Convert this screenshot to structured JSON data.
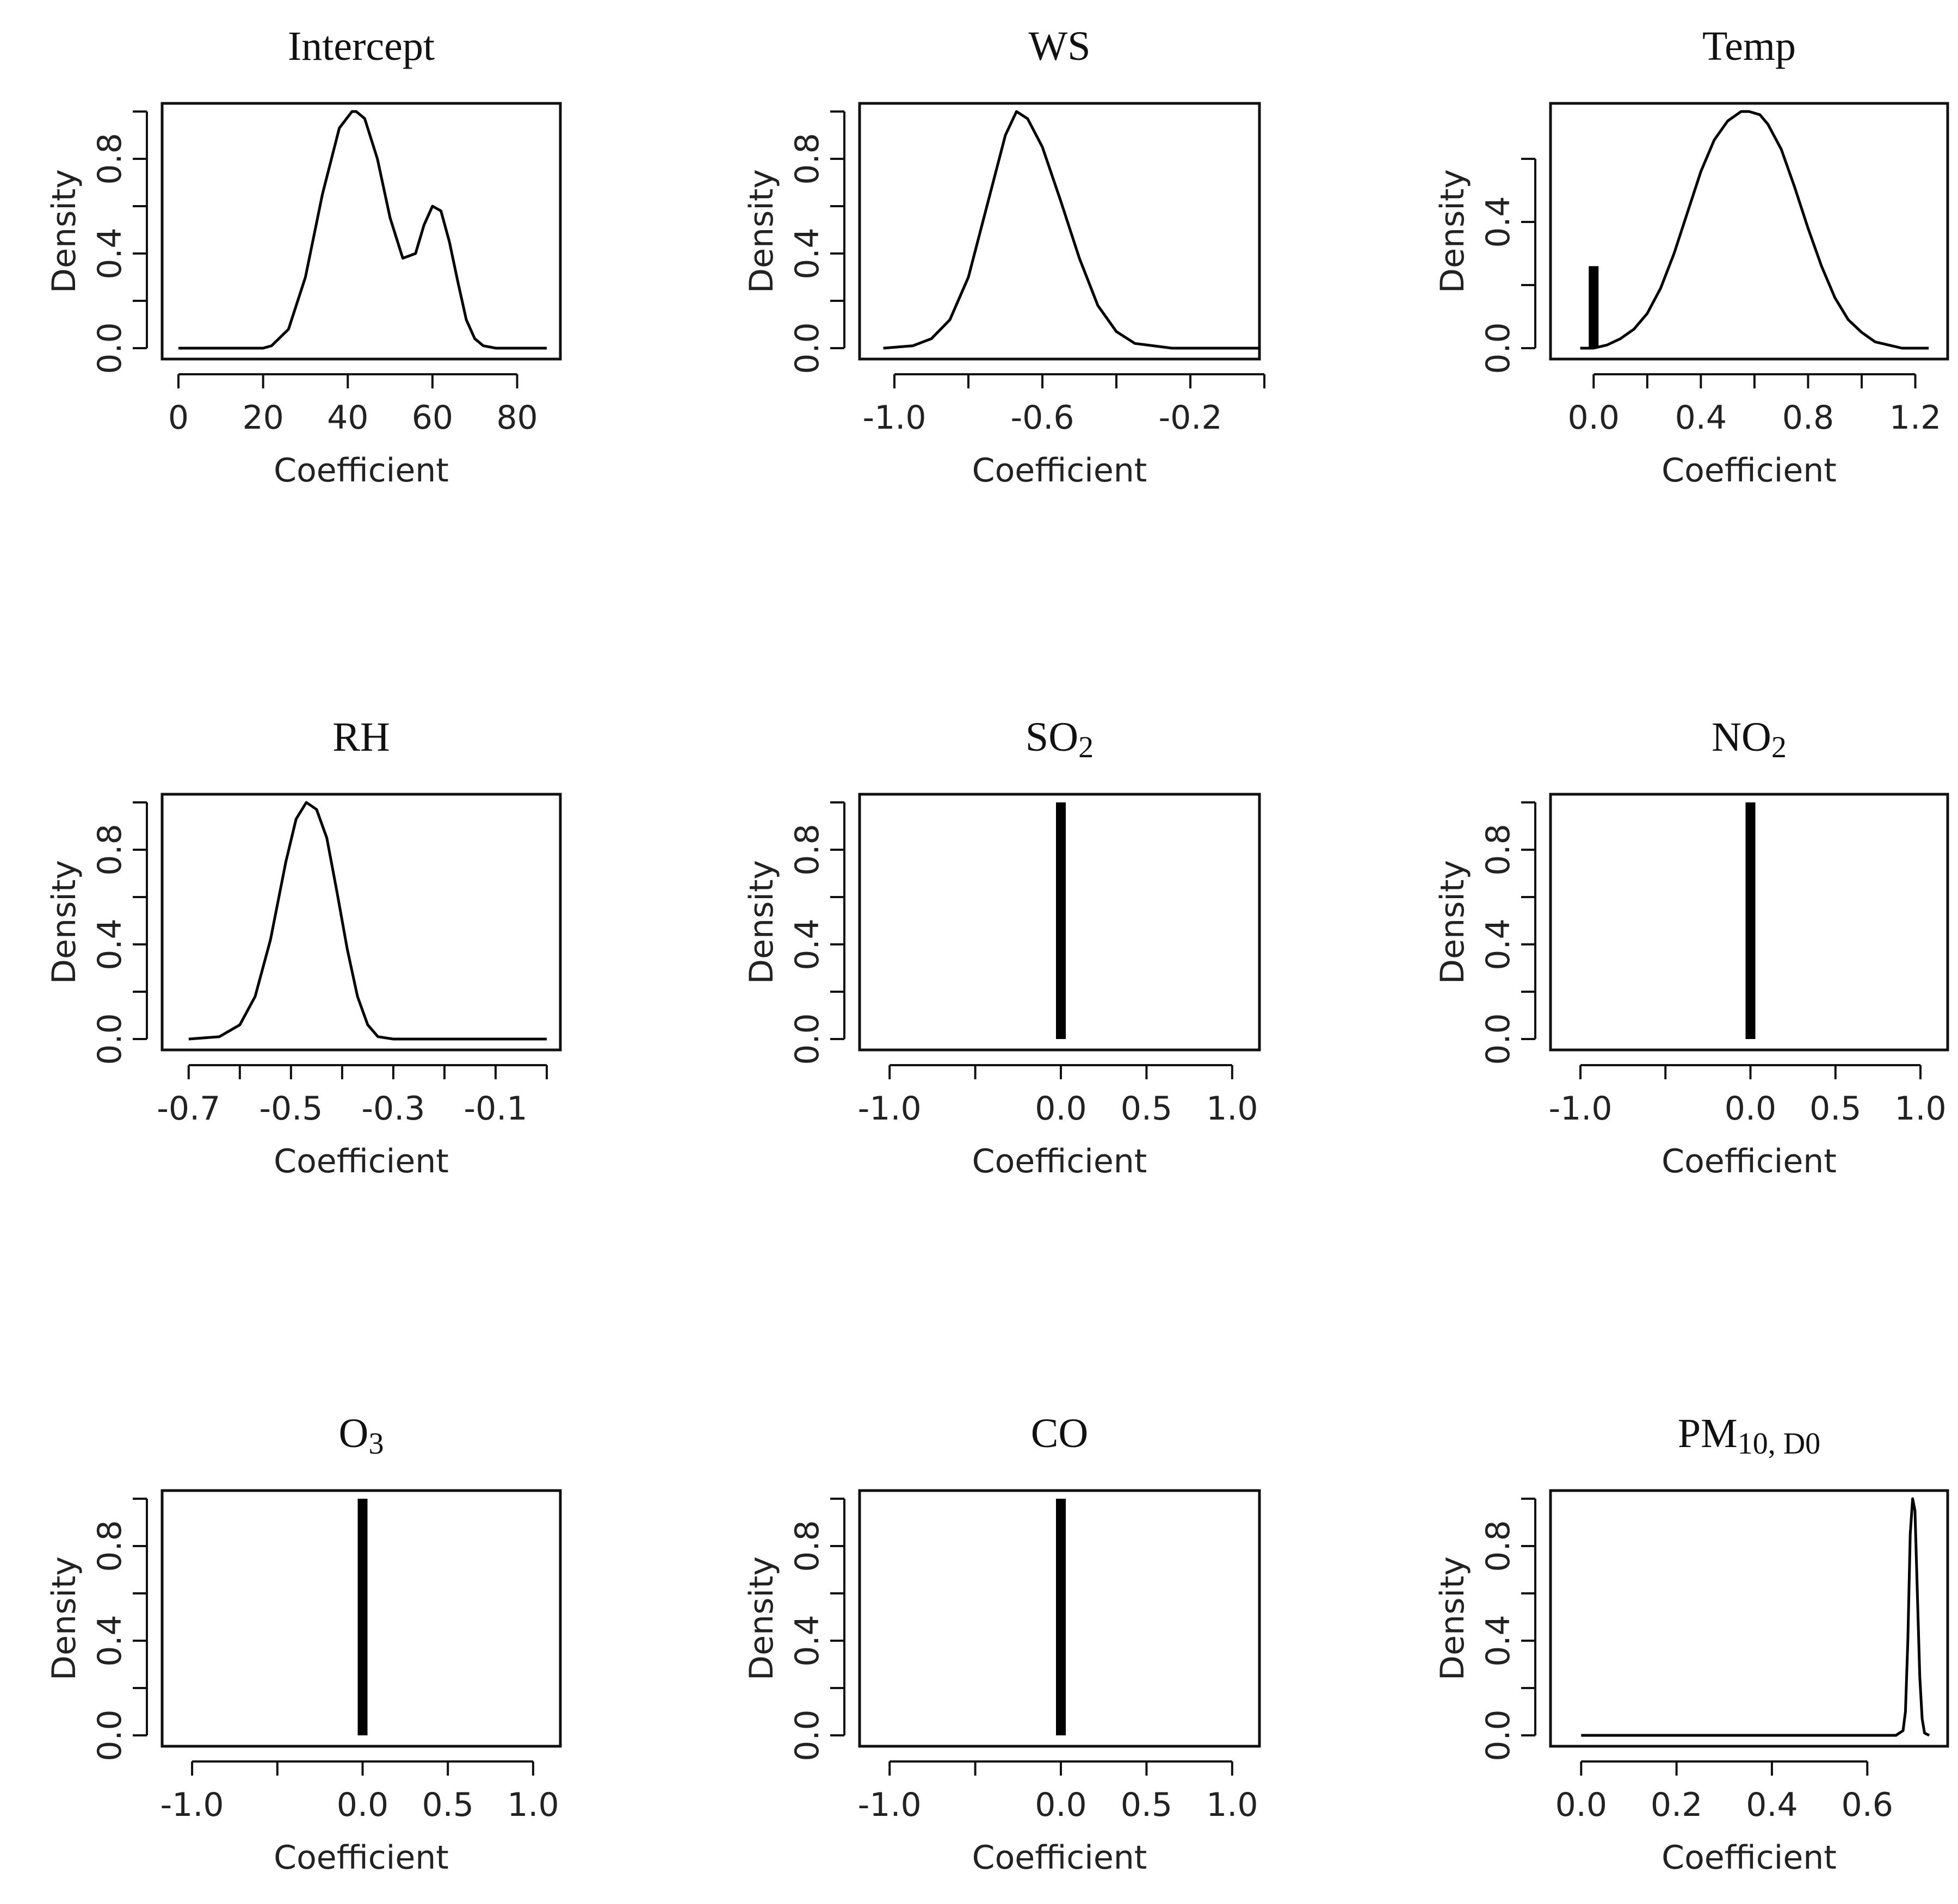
{
  "chart_data": [
    {
      "type": "line",
      "title": "Intercept",
      "xlabel": "Coefficient",
      "ylabel": "Density",
      "xlim": [
        0,
        87
      ],
      "ylim": [
        0,
        1
      ],
      "xticks": [
        0,
        20,
        40,
        60,
        80
      ],
      "xtick_labels": [
        "0",
        "20",
        "40",
        "60",
        "80"
      ],
      "yticks": [
        0,
        0.2,
        0.4,
        0.6,
        0.8,
        1.0
      ],
      "ytick_labels": [
        "0.0",
        "",
        "0.4",
        "",
        "0.8",
        ""
      ],
      "series": [
        {
          "name": "density",
          "x": [
            0,
            20,
            22,
            26,
            30,
            34,
            38,
            41,
            42,
            44,
            47,
            50,
            53,
            56,
            58,
            60,
            62,
            64,
            66,
            68,
            70,
            72,
            75,
            87
          ],
          "y": [
            0.0,
            0.0,
            0.01,
            0.08,
            0.3,
            0.65,
            0.93,
            1.0,
            1.0,
            0.97,
            0.8,
            0.55,
            0.38,
            0.4,
            0.52,
            0.6,
            0.58,
            0.45,
            0.28,
            0.12,
            0.04,
            0.01,
            0.0,
            0.0
          ]
        }
      ],
      "spikes": []
    },
    {
      "type": "line",
      "title": "WS",
      "xlabel": "Coefficient",
      "ylabel": "Density",
      "xlim": [
        -1.05,
        -0.05
      ],
      "ylim": [
        0,
        1
      ],
      "xticks": [
        -1.0,
        -0.8,
        -0.6,
        -0.4,
        -0.2,
        0.0
      ],
      "xtick_labels": [
        "-1.0",
        "",
        "-0.6",
        "",
        "-0.2",
        ""
      ],
      "yticks": [
        0,
        0.2,
        0.4,
        0.6,
        0.8,
        1.0
      ],
      "ytick_labels": [
        "0.0",
        "",
        "0.4",
        "",
        "0.8",
        ""
      ],
      "series": [
        {
          "name": "density",
          "x": [
            -1.03,
            -0.95,
            -0.9,
            -0.85,
            -0.8,
            -0.75,
            -0.7,
            -0.67,
            -0.64,
            -0.6,
            -0.55,
            -0.5,
            -0.45,
            -0.4,
            -0.35,
            -0.3,
            -0.25,
            -0.2,
            -0.1,
            -0.01
          ],
          "y": [
            0.0,
            0.01,
            0.04,
            0.12,
            0.3,
            0.6,
            0.9,
            1.0,
            0.97,
            0.85,
            0.62,
            0.38,
            0.18,
            0.07,
            0.02,
            0.01,
            0.0,
            0.0,
            0.0,
            0.0
          ]
        }
      ],
      "spikes": []
    },
    {
      "type": "line",
      "title": "Temp",
      "xlabel": "Coefficient",
      "ylabel": "Density",
      "xlim": [
        -0.1,
        1.27
      ],
      "ylim": [
        0,
        0.75
      ],
      "xticks": [
        0.0,
        0.2,
        0.4,
        0.6,
        0.8,
        1.0,
        1.2
      ],
      "xtick_labels": [
        "0.0",
        "",
        "0.4",
        "",
        "0.8",
        "",
        "1.2"
      ],
      "yticks": [
        0,
        0.2,
        0.4,
        0.6
      ],
      "ytick_labels": [
        "0.0",
        "",
        "0.4",
        ""
      ],
      "series": [
        {
          "name": "density",
          "x": [
            -0.05,
            0.0,
            0.05,
            0.1,
            0.15,
            0.2,
            0.25,
            0.3,
            0.35,
            0.4,
            0.45,
            0.5,
            0.55,
            0.58,
            0.62,
            0.65,
            0.7,
            0.75,
            0.8,
            0.85,
            0.9,
            0.95,
            1.0,
            1.05,
            1.1,
            1.15,
            1.25
          ],
          "y": [
            0.0,
            0.0,
            0.01,
            0.03,
            0.06,
            0.11,
            0.19,
            0.3,
            0.43,
            0.56,
            0.66,
            0.72,
            0.75,
            0.75,
            0.74,
            0.71,
            0.63,
            0.51,
            0.38,
            0.26,
            0.16,
            0.09,
            0.05,
            0.02,
            0.01,
            0.0,
            0.0
          ]
        }
      ],
      "spikes": [
        {
          "x": 0.0,
          "y": 0.26
        }
      ]
    },
    {
      "type": "line",
      "title": "RH",
      "xlabel": "Coefficient",
      "ylabel": "Density",
      "xlim": [
        -0.72,
        0.0
      ],
      "ylim": [
        0,
        1
      ],
      "xticks": [
        -0.7,
        -0.6,
        -0.5,
        -0.4,
        -0.3,
        -0.2,
        -0.1,
        0.0
      ],
      "xtick_labels": [
        "-0.7",
        "",
        "-0.5",
        "",
        "-0.3",
        "",
        "-0.1",
        ""
      ],
      "yticks": [
        0,
        0.2,
        0.4,
        0.6,
        0.8,
        1.0
      ],
      "ytick_labels": [
        "0.0",
        "",
        "0.4",
        "",
        "0.8",
        ""
      ],
      "series": [
        {
          "name": "density",
          "x": [
            -0.7,
            -0.64,
            -0.6,
            -0.57,
            -0.54,
            -0.51,
            -0.49,
            -0.47,
            -0.45,
            -0.43,
            -0.41,
            -0.39,
            -0.37,
            -0.35,
            -0.33,
            -0.3,
            -0.2,
            0.0
          ],
          "y": [
            0.0,
            0.01,
            0.06,
            0.18,
            0.42,
            0.75,
            0.93,
            1.0,
            0.97,
            0.85,
            0.62,
            0.38,
            0.18,
            0.06,
            0.01,
            0.0,
            0.0,
            0.0
          ]
        }
      ],
      "spikes": []
    },
    {
      "type": "line",
      "title": "SO2",
      "title_main": "SO",
      "title_sub": "2",
      "xlabel": "Coefficient",
      "ylabel": "Density",
      "xlim": [
        -1.08,
        1.08
      ],
      "ylim": [
        0,
        1
      ],
      "xticks": [
        -1.0,
        -0.5,
        0.0,
        0.5,
        1.0
      ],
      "xtick_labels": [
        "-1.0",
        "",
        "0.0",
        "0.5",
        "1.0"
      ],
      "yticks": [
        0,
        0.2,
        0.4,
        0.6,
        0.8,
        1.0
      ],
      "ytick_labels": [
        "0.0",
        "",
        "0.4",
        "",
        "0.8",
        ""
      ],
      "series": [],
      "spikes": [
        {
          "x": 0.0,
          "y": 1.0
        }
      ]
    },
    {
      "type": "line",
      "title": "NO2",
      "title_main": "NO",
      "title_sub": "2",
      "xlabel": "Coefficient",
      "ylabel": "Density",
      "xlim": [
        -1.08,
        1.08
      ],
      "ylim": [
        0,
        1
      ],
      "xticks": [
        -1.0,
        -0.5,
        0.0,
        0.5,
        1.0
      ],
      "xtick_labels": [
        "-1.0",
        "",
        "0.0",
        "0.5",
        "1.0"
      ],
      "yticks": [
        0,
        0.2,
        0.4,
        0.6,
        0.8,
        1.0
      ],
      "ytick_labels": [
        "0.0",
        "",
        "0.4",
        "",
        "0.8",
        ""
      ],
      "series": [],
      "spikes": [
        {
          "x": 0.0,
          "y": 1.0
        }
      ]
    },
    {
      "type": "line",
      "title": "O3",
      "title_main": "O",
      "title_sub": "3",
      "xlabel": "Coefficient",
      "ylabel": "Density",
      "xlim": [
        -1.08,
        1.08
      ],
      "ylim": [
        0,
        1
      ],
      "xticks": [
        -1.0,
        -0.5,
        0.0,
        0.5,
        1.0
      ],
      "xtick_labels": [
        "-1.0",
        "",
        "0.0",
        "0.5",
        "1.0"
      ],
      "yticks": [
        0,
        0.2,
        0.4,
        0.6,
        0.8,
        1.0
      ],
      "ytick_labels": [
        "0.0",
        "",
        "0.4",
        "",
        "0.8",
        ""
      ],
      "series": [],
      "spikes": [
        {
          "x": 0.0,
          "y": 1.0
        }
      ]
    },
    {
      "type": "line",
      "title": "CO",
      "xlabel": "Coefficient",
      "ylabel": "Density",
      "xlim": [
        -1.08,
        1.08
      ],
      "ylim": [
        0,
        1
      ],
      "xticks": [
        -1.0,
        -0.5,
        0.0,
        0.5,
        1.0
      ],
      "xtick_labels": [
        "-1.0",
        "",
        "0.0",
        "0.5",
        "1.0"
      ],
      "yticks": [
        0,
        0.2,
        0.4,
        0.6,
        0.8,
        1.0
      ],
      "ytick_labels": [
        "0.0",
        "",
        "0.4",
        "",
        "0.8",
        ""
      ],
      "series": [],
      "spikes": [
        {
          "x": 0.0,
          "y": 1.0
        }
      ]
    },
    {
      "type": "line",
      "title": "PM10, D0",
      "title_main": "PM",
      "title_sub": "10, D0",
      "xlabel": "Coefficient",
      "ylabel": "Density",
      "xlim": [
        -0.03,
        0.74
      ],
      "ylim": [
        0,
        1
      ],
      "xticks": [
        0.0,
        0.2,
        0.4,
        0.6
      ],
      "xtick_labels": [
        "0.0",
        "0.2",
        "0.4",
        "0.6"
      ],
      "yticks": [
        0,
        0.2,
        0.4,
        0.6,
        0.8,
        1.0
      ],
      "ytick_labels": [
        "0.0",
        "",
        "0.4",
        "",
        "0.8",
        ""
      ],
      "series": [
        {
          "name": "density",
          "x": [
            0.0,
            0.66,
            0.675,
            0.68,
            0.685,
            0.69,
            0.695,
            0.7,
            0.705,
            0.71,
            0.715,
            0.72,
            0.73
          ],
          "y": [
            0.0,
            0.0,
            0.02,
            0.1,
            0.4,
            0.85,
            1.0,
            0.95,
            0.6,
            0.25,
            0.07,
            0.01,
            0.0
          ]
        }
      ],
      "spikes": []
    }
  ]
}
